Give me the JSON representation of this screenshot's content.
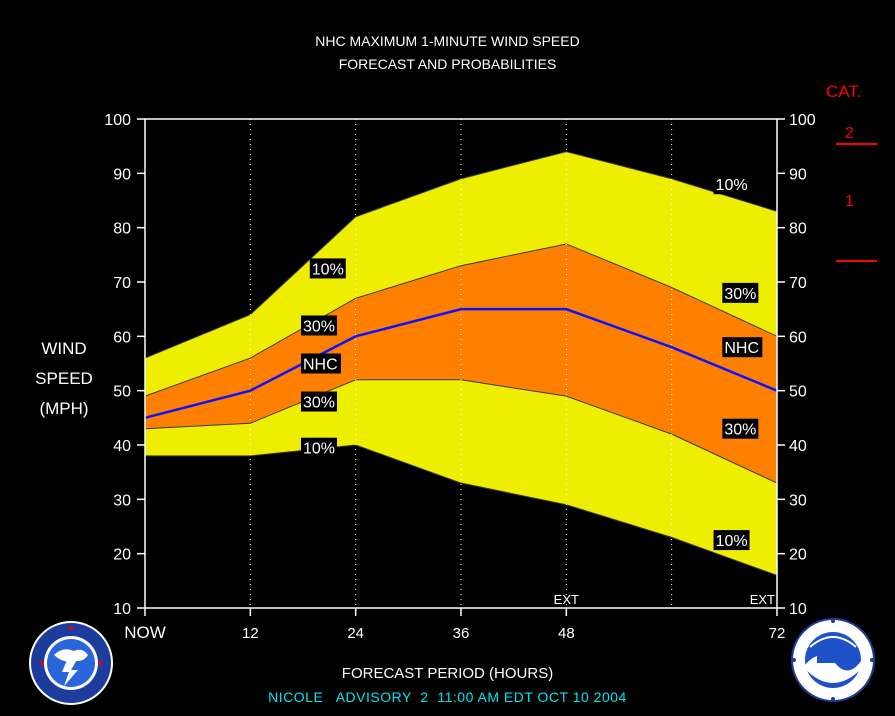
{
  "title_line1": "NHC MAXIMUM 1-MINUTE WIND SPEED",
  "title_line2": "FORECAST AND PROBABILITIES",
  "ylabel": [
    "WIND",
    "SPEED",
    "(MPH)"
  ],
  "xlabel": "FORECAST PERIOD (HOURS)",
  "advisory": "NICOLE   ADVISORY  2  11:00 AM EDT OCT 10 2004",
  "category_scale": {
    "title": "CAT.",
    "labels": [
      "2",
      "1"
    ],
    "color": "#ff0000"
  },
  "chart_data": {
    "type": "area",
    "x": [
      0,
      12,
      24,
      36,
      48,
      60,
      72
    ],
    "x_tick_labels": [
      {
        "x": 0,
        "label": "NOW"
      },
      {
        "x": 12,
        "label": "12"
      },
      {
        "x": 24,
        "label": "24"
      },
      {
        "x": 36,
        "label": "36"
      },
      {
        "x": 48,
        "label": "48"
      },
      {
        "x": 72,
        "label": "72"
      }
    ],
    "ext_labels": [
      {
        "x": 48,
        "label": "EXT"
      },
      {
        "x": 72,
        "label": "EXT"
      }
    ],
    "xlim": [
      0,
      72
    ],
    "ylim": [
      10,
      100
    ],
    "y_ticks": [
      10,
      20,
      30,
      40,
      50,
      60,
      70,
      80,
      90,
      100
    ],
    "vertical_gridlines_at": [
      12,
      24,
      36,
      48,
      60
    ],
    "series": [
      {
        "name": "10%",
        "role": "upper_10",
        "values": [
          56,
          64,
          82,
          89,
          94,
          89,
          83
        ]
      },
      {
        "name": "30%",
        "role": "upper_30",
        "values": [
          49,
          56,
          67,
          73,
          77,
          69,
          60
        ]
      },
      {
        "name": "NHC",
        "role": "nhc",
        "values": [
          45,
          50,
          60,
          65,
          65,
          58,
          50
        ]
      },
      {
        "name": "30%",
        "role": "lower_30",
        "values": [
          43,
          44,
          52,
          52,
          49,
          42,
          33
        ]
      },
      {
        "name": "10%",
        "role": "lower_10",
        "values": [
          38,
          38,
          40,
          33,
          29,
          23,
          16
        ]
      }
    ],
    "band_labels": [
      {
        "text": "10%",
        "x": 19,
        "y": 72.5
      },
      {
        "text": "30%",
        "x": 18,
        "y": 62
      },
      {
        "text": "NHC",
        "x": 18,
        "y": 55
      },
      {
        "text": "30%",
        "x": 18,
        "y": 48
      },
      {
        "text": "10%",
        "x": 18,
        "y": 39.5
      },
      {
        "text": "10%",
        "x": 65,
        "y": 88
      },
      {
        "text": "30%",
        "x": 66,
        "y": 68
      },
      {
        "text": "NHC",
        "x": 66,
        "y": 58
      },
      {
        "text": "30%",
        "x": 66,
        "y": 43
      },
      {
        "text": "10%",
        "x": 65,
        "y": 22.5
      }
    ],
    "category_thresholds_mph": [
      74,
      96
    ],
    "colors": {
      "background": "#000000",
      "plot_background": "#000000",
      "outer_band": "#eeee00",
      "inner_band": "#ff8000",
      "nhc_line": "#1010ff",
      "band_edge": "#3a3a3a",
      "axis_text": "#ffffff"
    }
  }
}
